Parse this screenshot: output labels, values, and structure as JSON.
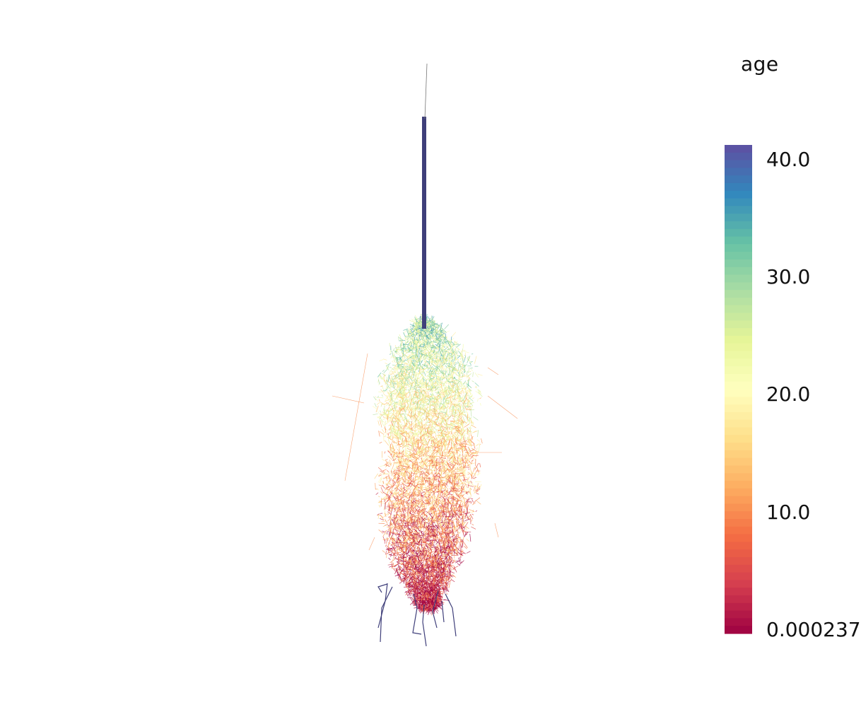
{
  "scalar_bar": {
    "title": "age",
    "range": [
      0.000237,
      42.0
    ],
    "ticks": [
      {
        "value": 40.0,
        "label": "40.0"
      },
      {
        "value": 30.0,
        "label": "30.0"
      },
      {
        "value": 20.0,
        "label": "20.0"
      },
      {
        "value": 10.0,
        "label": "10.0"
      },
      {
        "value": 0.000237,
        "label": "0.000237"
      }
    ],
    "colormap": "Spectral",
    "colors_low_to_high": [
      "#9e0142",
      "#d53e4f",
      "#f46d43",
      "#fdae61",
      "#fee08b",
      "#ffffbf",
      "#e6f598",
      "#abdda4",
      "#66c2a5",
      "#3288bd",
      "#5e4fa2"
    ]
  },
  "scene": {
    "object": "root-system",
    "stem_color": "#3f3f7a"
  }
}
